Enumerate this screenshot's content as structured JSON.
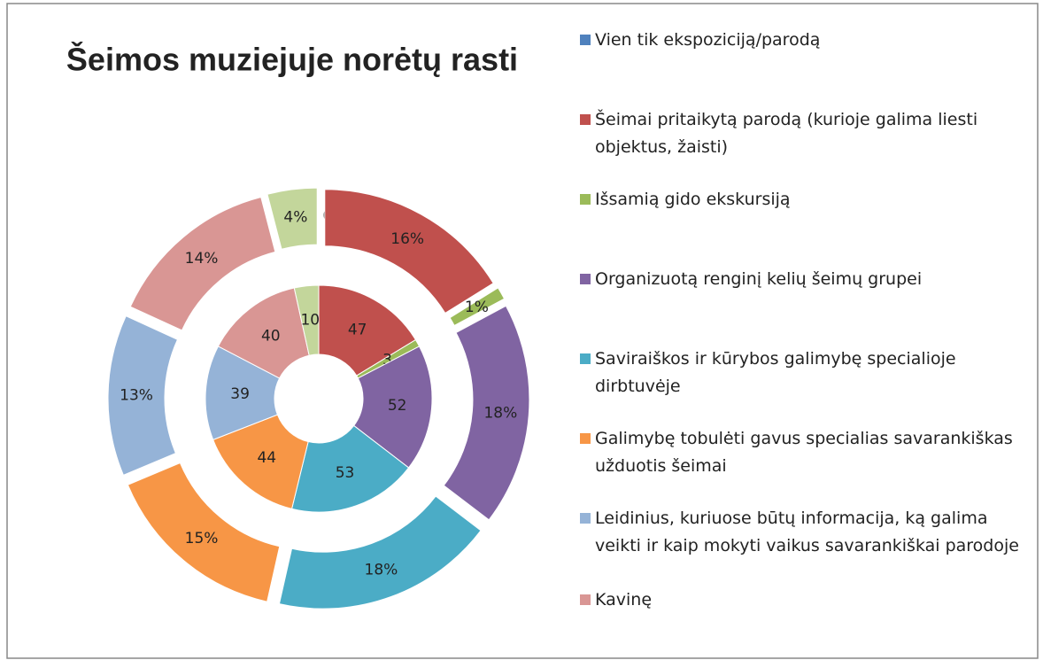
{
  "chart_data": {
    "type": "donut",
    "title": "Šeimos muziejuje norėtų rasti",
    "categories": [
      "Vien tik ekspoziciją/parodą",
      "Šeimai pritaikytą parodą (kurioje galima liesti objektus, žaisti)",
      "Išsamią gido ekskursiją",
      "Organizuotą renginį kelių šeimų grupei",
      "Saviraiškos ir kūrybos galimybę specialioje dirbtuvėje",
      "Galimybę tobulėti gavus specialias savarankiškas užduotis šeimai",
      "Leidinius, kuriuose būtų informacija, ką galima veikti ir kaip mokyti vaikus savarankiškai parodoje",
      "Kavinę",
      null
    ],
    "colors": [
      "#4f81bd",
      "#c0504d",
      "#9bbb59",
      "#8064a2",
      "#4bacc6",
      "#f79646",
      "#95b3d7",
      "#d99694",
      "#c3d69b"
    ],
    "series": [
      {
        "values": [
          0,
          47,
          3,
          52,
          53,
          44,
          39,
          40,
          10
        ]
      },
      {
        "values": [
          0,
          16,
          1,
          18,
          18,
          15,
          13,
          14,
          4
        ],
        "value_labels": [
          "0%",
          "16%",
          "1%",
          "18%",
          "18%",
          "15%",
          "13%",
          "14%",
          "4%"
        ]
      }
    ]
  }
}
